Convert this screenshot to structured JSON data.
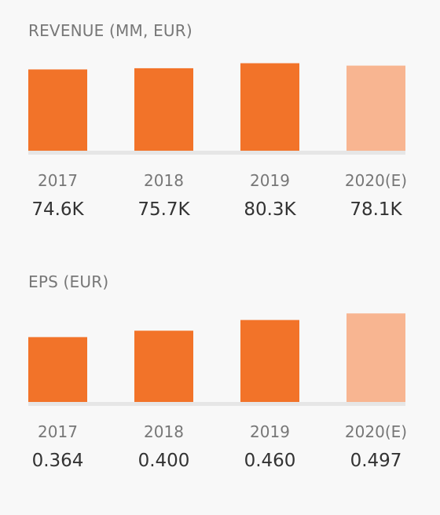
{
  "colors": {
    "background": "#f8f8f8",
    "bar_actual": "#f27329",
    "bar_estimate": "#f8b591",
    "baseline": "#e6e6e6",
    "title_text": "#777777",
    "value_text": "#333333"
  },
  "chart_data": [
    {
      "type": "bar",
      "title": "REVENUE (MM, EUR)",
      "categories": [
        "2017",
        "2018",
        "2019",
        "2020(E)"
      ],
      "values": [
        74.6,
        75.7,
        80.3,
        78.1
      ],
      "value_labels": [
        "74.6K",
        "75.7K",
        "80.3K",
        "78.1K"
      ],
      "estimated": [
        false,
        false,
        false,
        true
      ],
      "xlabel": "",
      "ylabel": "",
      "ylim": [
        0,
        85
      ],
      "grid": false,
      "legend": "none"
    },
    {
      "type": "bar",
      "title": "EPS (EUR)",
      "categories": [
        "2017",
        "2018",
        "2019",
        "2020(E)"
      ],
      "values": [
        0.364,
        0.4,
        0.46,
        0.497
      ],
      "value_labels": [
        "0.364",
        "0.400",
        "0.460",
        "0.497"
      ],
      "estimated": [
        false,
        false,
        false,
        true
      ],
      "xlabel": "",
      "ylabel": "",
      "ylim": [
        0,
        0.52
      ],
      "grid": false,
      "legend": "none"
    }
  ]
}
